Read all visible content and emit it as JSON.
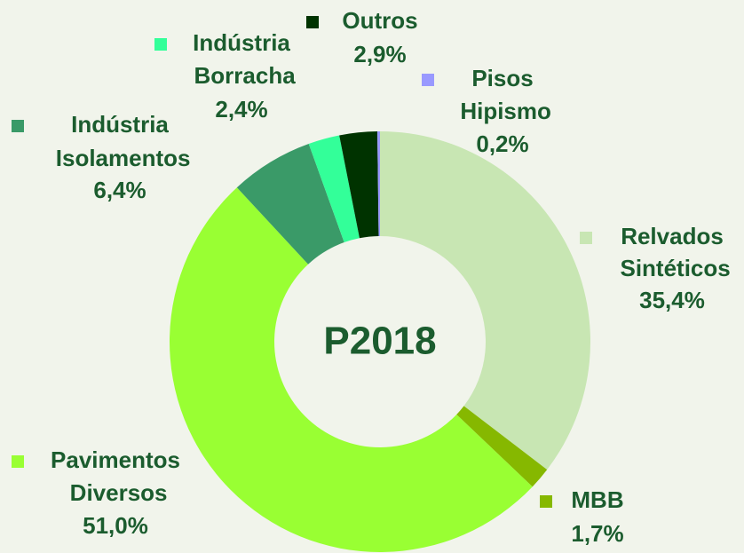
{
  "chart_data": {
    "type": "donut",
    "center_text": "P2018",
    "categories": [
      "Relvados Sintéticos",
      "MBB",
      "Pavimentos Diversos",
      "Indústria Isolamentos",
      "Indústria Borracha",
      "Outros",
      "Pisos Hipismo"
    ],
    "values": [
      35.4,
      1.7,
      51.0,
      6.4,
      2.4,
      2.9,
      0.2
    ],
    "value_labels": [
      "35,4%",
      "1,7%",
      "51,0%",
      "6,4%",
      "2,4%",
      "2,9%",
      "0,2%"
    ],
    "colors": [
      "#c8e6b3",
      "#86b800",
      "#99ff33",
      "#3a9a68",
      "#33ff99",
      "#003300",
      "#9999ff"
    ]
  }
}
